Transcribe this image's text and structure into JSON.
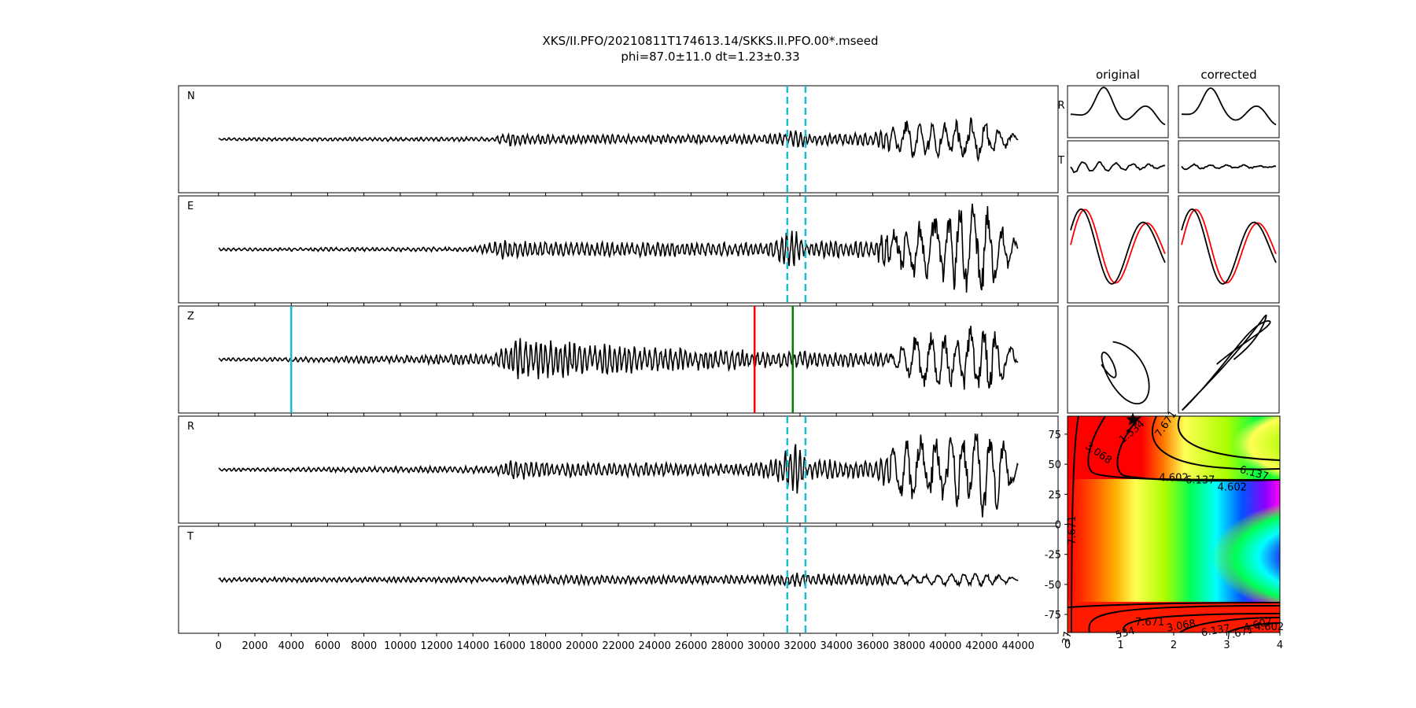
{
  "title_line1": "XKS/II.PFO/20210811T174613.14/SKKS.II.PFO.00*.mseed",
  "title_line2": "phi=87.0±11.0 dt=1.23±0.33",
  "chart_data": [
    {
      "type": "line",
      "role": "seismograms",
      "channels": [
        "N",
        "E",
        "Z",
        "R",
        "T"
      ],
      "x_ticks": [
        0,
        2000,
        4000,
        6000,
        8000,
        10000,
        12000,
        14000,
        16000,
        18000,
        20000,
        22000,
        24000,
        26000,
        28000,
        30000,
        32000,
        34000,
        36000,
        38000,
        40000,
        42000,
        44000
      ],
      "xlim": [
        -2200,
        46200
      ],
      "trace_x_range": [
        0,
        44000
      ],
      "window_markers": [
        31300,
        32300
      ],
      "window_marker_color": "#17becf",
      "z_markers": [
        {
          "x": 4000,
          "color": "#17becf"
        },
        {
          "x": 29500,
          "color": "#ff0000"
        },
        {
          "x": 31600,
          "color": "#008000"
        }
      ]
    },
    {
      "type": "line",
      "role": "waveform-comparison",
      "column_titles": [
        "original",
        "corrected"
      ],
      "row_labels": [
        "R",
        "T"
      ],
      "overlay_color": "#ff0000"
    },
    {
      "type": "heatmap",
      "role": "misfit-grid",
      "xlim": [
        0,
        4
      ],
      "ylim": [
        -90,
        90
      ],
      "x_ticks": [
        0,
        1,
        2,
        3,
        4
      ],
      "y_ticks": [
        75,
        50,
        25,
        0,
        -25,
        -50,
        -75
      ],
      "best_fit": {
        "dt": 1.23,
        "phi": 87.0
      },
      "contour_labels": [
        "1.534",
        "3.068",
        "4.602",
        "6.137",
        "7.671",
        "4.602",
        "6.137",
        "7.671",
        "4.602",
        "3.068",
        "6.137",
        "7.671",
        "4.602",
        "534",
        "37"
      ]
    }
  ]
}
